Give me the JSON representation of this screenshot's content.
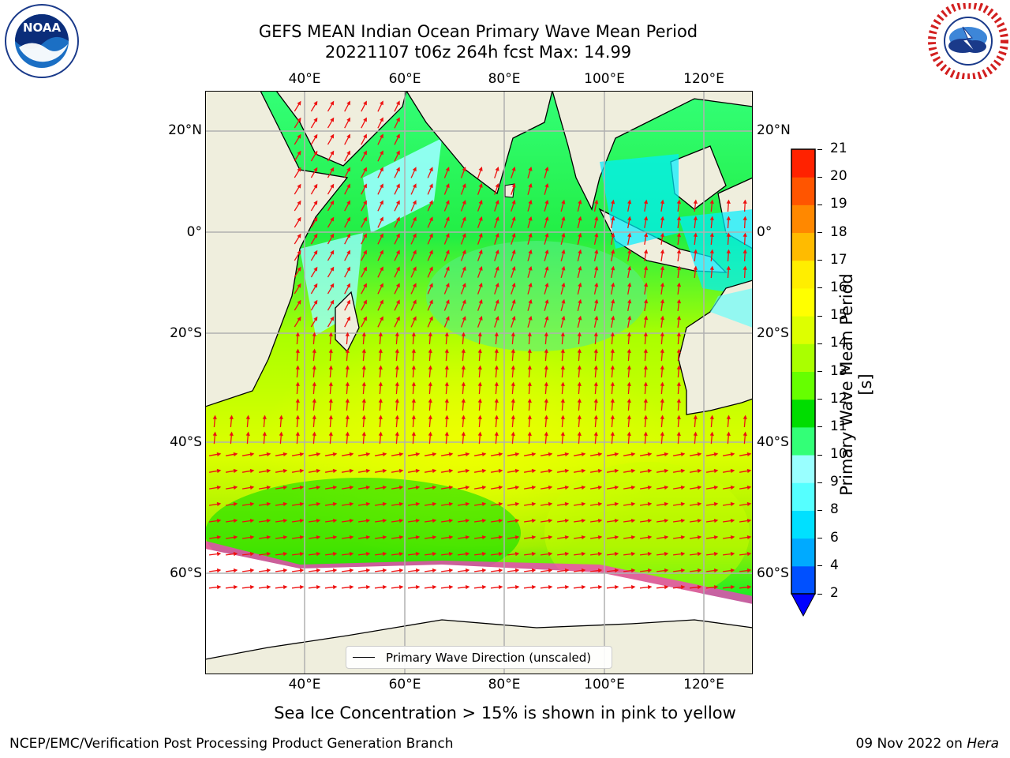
{
  "header": {
    "title_line1": "GEFS MEAN Indian Ocean Primary Wave Mean Period",
    "title_line2": "20221107 t06z 264h fcst   Max: 14.99"
  },
  "logos": {
    "left": {
      "text": "NOAA",
      "ring_text": "NATIONAL OCEANIC AND ATMOSPHERIC ADMINISTRATION · U.S. DEPARTMENT OF COMMERCE"
    },
    "right": {
      "ring_text": "NATIONAL WEATHER SERVICE"
    }
  },
  "map": {
    "lon_ticks": [
      "40°E",
      "60°E",
      "80°E",
      "100°E",
      "120°E"
    ],
    "lat_ticks": [
      "20°N",
      "0°",
      "20°S",
      "40°S",
      "60°S"
    ],
    "legend_label": "Primary Wave Direction (unscaled)"
  },
  "colorbar": {
    "label": "Primary Wave Mean Period [s]",
    "ticks": [
      "2",
      "4",
      "6",
      "8",
      "9",
      "10",
      "11",
      "12",
      "13",
      "14",
      "15",
      "16",
      "17",
      "18",
      "19",
      "20",
      "21"
    ],
    "colors": [
      "#0050ff",
      "#00aaff",
      "#00e0ff",
      "#55ffff",
      "#99ffff",
      "#33ff77",
      "#00dd00",
      "#66ff00",
      "#aaff00",
      "#ddff00",
      "#ffff00",
      "#ffee00",
      "#ffbb00",
      "#ff8800",
      "#ff5500",
      "#ff2200"
    ],
    "under_color": "#0000ff"
  },
  "footer": {
    "note": "Sea Ice Concentration > 15% is shown in pink to yellow",
    "left": "NCEP/EMC/Verification Post Processing Product Generation Branch",
    "date": "09 Nov 2022 on",
    "machine": "Hera"
  }
}
